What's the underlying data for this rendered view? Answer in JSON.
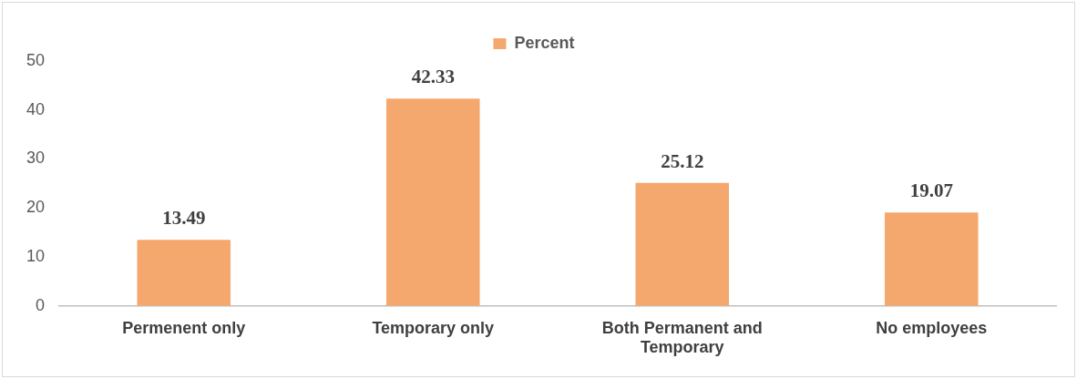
{
  "chart_data": {
    "type": "bar",
    "categories": [
      "Permenent only",
      "Temporary only",
      "Both Permanent and Temporary",
      "No employees"
    ],
    "series": [
      {
        "name": "Percent",
        "color": "#f5a86e",
        "values": [
          13.49,
          42.33,
          25.12,
          19.07
        ]
      }
    ],
    "ylim": [
      0,
      50
    ],
    "yticks": [
      0,
      10,
      20,
      30,
      40,
      50
    ],
    "grid": false,
    "legend": "top",
    "data_labels": true
  }
}
